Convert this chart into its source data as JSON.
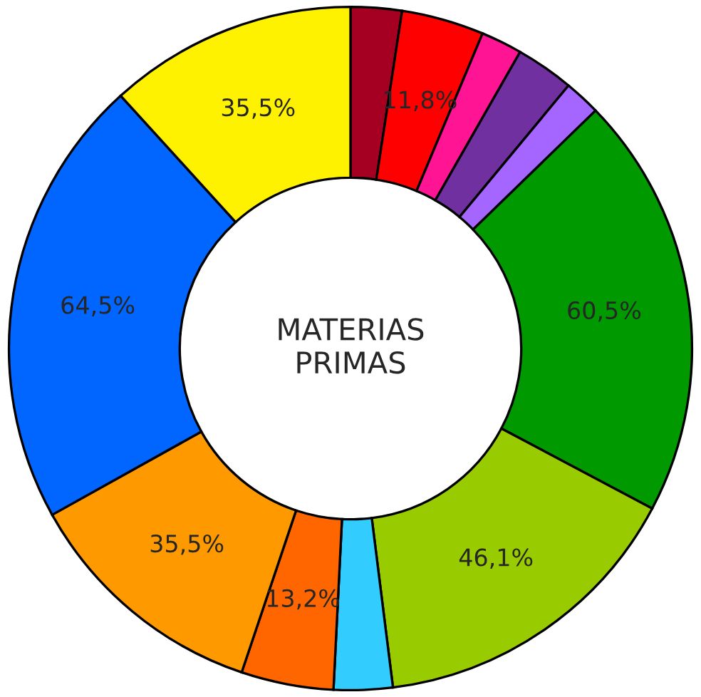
{
  "chart_data": {
    "type": "donut",
    "title": "MATERIAS\nPRIMAS",
    "categories": [
      null,
      null,
      null,
      null,
      null,
      null,
      null,
      null,
      null,
      null,
      null,
      null
    ],
    "values": [
      7.3,
      11.8,
      5.9,
      8.3,
      5.2,
      60.5,
      46.1,
      8.4,
      13.2,
      35.5,
      64.5,
      35.5
    ],
    "value_labels": [
      null,
      "11,8%",
      null,
      null,
      null,
      "60,5%",
      "46,1%",
      null,
      "13,2%",
      "35,5%",
      "64,5%",
      "35,5%"
    ],
    "colors": [
      "#a50021",
      "#ff0000",
      "#ff1493",
      "#7030a0",
      "#a566ff",
      "#009900",
      "#99cc00",
      "#33ccff",
      "#ff6600",
      "#ff9900",
      "#0066ff",
      "#fff200"
    ],
    "legend": false
  }
}
